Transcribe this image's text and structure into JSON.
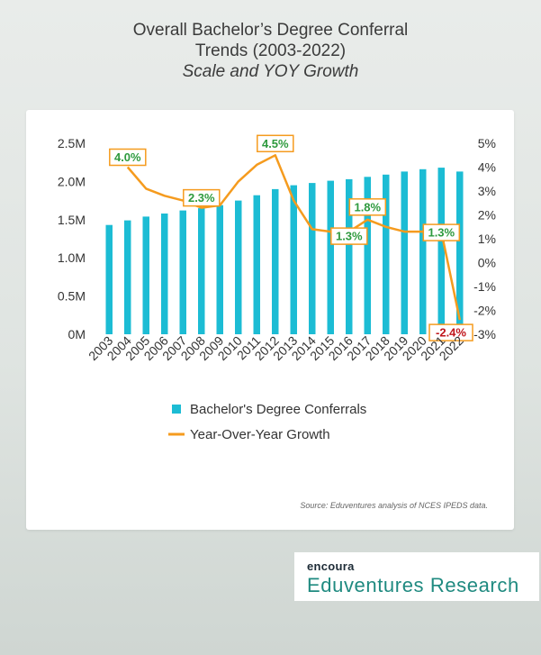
{
  "title": {
    "line1": "Overall Bachelor’s Degree Conferral",
    "line2": "Trends (2003-2022)",
    "subtitle": "Scale and YOY Growth"
  },
  "colors": {
    "bar": "#1cbcd4",
    "line": "#f59b1e",
    "positive_label": "#2e9a3e",
    "negative_label": "#c0161c",
    "label_border": "#f59b1e"
  },
  "chart_data": {
    "type": "bar",
    "categories": [
      "2003",
      "2004",
      "2005",
      "2006",
      "2007",
      "2008",
      "2009",
      "2010",
      "2011",
      "2012",
      "2013",
      "2014",
      "2015",
      "2016",
      "2017",
      "2018",
      "2019",
      "2020",
      "2021",
      "2022"
    ],
    "series": [
      {
        "name": "Bachelor's Degree Conferrals",
        "type": "bar",
        "axis": "left",
        "values": [
          1.43,
          1.49,
          1.54,
          1.58,
          1.62,
          1.65,
          1.69,
          1.75,
          1.82,
          1.9,
          1.95,
          1.98,
          2.01,
          2.03,
          2.06,
          2.09,
          2.13,
          2.16,
          2.18,
          2.13
        ]
      },
      {
        "name": "Year-Over-Year Growth",
        "type": "line",
        "axis": "right",
        "values": [
          null,
          4.0,
          3.1,
          2.8,
          2.6,
          2.3,
          2.4,
          3.4,
          4.1,
          4.5,
          2.6,
          1.4,
          1.3,
          1.3,
          1.8,
          1.5,
          1.3,
          1.3,
          1.3,
          -2.4
        ]
      }
    ],
    "left_axis": {
      "ylim": [
        0,
        2.5
      ],
      "tick_labels": [
        "0M",
        "0.5M",
        "1.0M",
        "1.5M",
        "2.0M",
        "2.5M"
      ]
    },
    "right_axis": {
      "ylim": [
        -3,
        5
      ],
      "tick_labels": [
        "-3%",
        "-2%",
        "-1%",
        "0%",
        "1%",
        "2%",
        "3%",
        "4%",
        "5%"
      ]
    },
    "data_labels": [
      {
        "year": "2004",
        "text": "4.0%",
        "sign": "positive"
      },
      {
        "year": "2008",
        "text": "2.3%",
        "sign": "positive"
      },
      {
        "year": "2012",
        "text": "4.5%",
        "sign": "positive"
      },
      {
        "year": "2016",
        "text": "1.3%",
        "sign": "positive"
      },
      {
        "year": "2017",
        "text": "1.8%",
        "sign": "positive"
      },
      {
        "year": "2021",
        "text": "1.3%",
        "sign": "positive"
      },
      {
        "year": "2022",
        "text": "-2.4%",
        "sign": "negative"
      }
    ],
    "legend": [
      "Bachelor's Degree Conferrals",
      "Year-Over-Year Growth"
    ],
    "legend_position": "bottom",
    "grid": false
  },
  "source": "Source: Eduventures analysis of NCES IPEDS data.",
  "logo": {
    "brand": "encoura",
    "name": "Eduventures Research"
  }
}
